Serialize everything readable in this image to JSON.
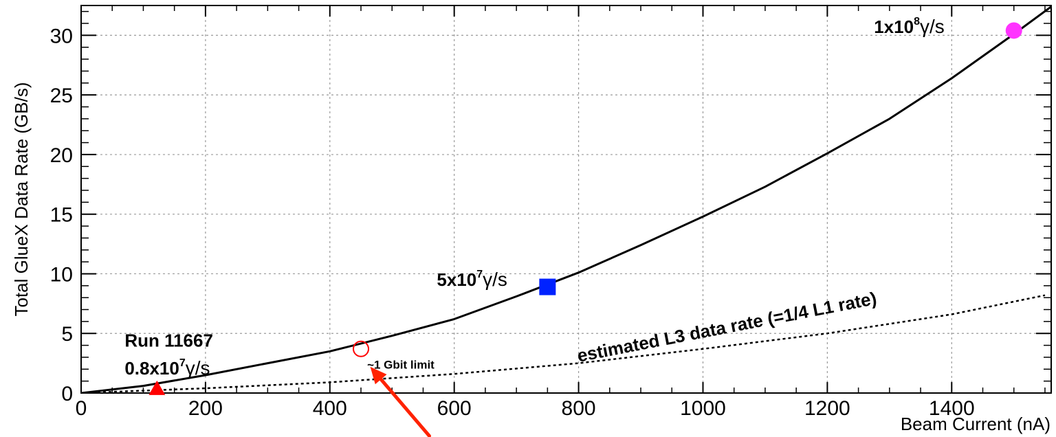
{
  "chart_data": {
    "type": "line",
    "title": "",
    "xlabel": "Beam Current (nA)",
    "ylabel": "Total GlueX Data Rate (GB/s)",
    "xlim": [
      0,
      1560
    ],
    "ylim": [
      0,
      32.5
    ],
    "x_ticks": [
      0,
      200,
      400,
      600,
      800,
      1000,
      1200,
      1400
    ],
    "x_tick_labels": [
      "0",
      "200",
      "400",
      "600",
      "800",
      "1000",
      "1200",
      "1400"
    ],
    "y_ticks": [
      0,
      5,
      10,
      15,
      20,
      25,
      30
    ],
    "y_tick_labels": [
      "0",
      "5",
      "10",
      "15",
      "20",
      "25",
      "30"
    ],
    "grid": true,
    "series": [
      {
        "name": "",
        "style": "solid",
        "color": "#000000",
        "x": [
          0,
          100,
          200,
          300,
          400,
          500,
          600,
          700,
          800,
          900,
          1000,
          1100,
          1200,
          1300,
          1400,
          1500,
          1560
        ],
        "y": [
          0,
          0.6,
          1.5,
          2.5,
          3.5,
          4.8,
          6.2,
          8.1,
          10.1,
          12.4,
          14.8,
          17.3,
          20.1,
          23.0,
          26.4,
          30.1,
          32.4
        ]
      },
      {
        "name": "",
        "style": "dotted",
        "color": "#000000",
        "x": [
          0,
          200,
          400,
          600,
          800,
          1000,
          1200,
          1400,
          1550
        ],
        "y": [
          0,
          0.4,
          0.9,
          1.6,
          2.5,
          3.7,
          5.0,
          6.6,
          8.2
        ]
      }
    ],
    "markers": [
      {
        "shape": "triangle",
        "color": "#ff0000",
        "fill": true,
        "x": 122,
        "y": 0.35
      },
      {
        "shape": "circle",
        "color": "#ff0000",
        "fill": false,
        "x": 450,
        "y": 3.7
      },
      {
        "shape": "square",
        "color": "#0022ff",
        "fill": true,
        "x": 750,
        "y": 8.9
      },
      {
        "shape": "circle",
        "color": "#ff33ff",
        "fill": true,
        "x": 1500,
        "y": 30.4
      }
    ],
    "annotations": [
      {
        "name": "run-label",
        "text": "Run 11667",
        "x": 70,
        "y": 3.9,
        "size": 26
      },
      {
        "name": "run-flux",
        "base": "0.8x10",
        "exp": "7",
        "unit": "γ/s",
        "x": 70,
        "y": 1.55,
        "size": 26
      },
      {
        "name": "flux-5e7",
        "base": "5x10",
        "exp": "7",
        "unit": "γ/s",
        "x": 572,
        "y": 9.0,
        "size": 26
      },
      {
        "name": "flux-1e8",
        "base": "1x10",
        "exp": "8",
        "unit": "γ/s",
        "x": 1275,
        "y": 30.2,
        "size": 26
      },
      {
        "name": "gbit-limit",
        "text": "~1 Gbit limit",
        "x": 460,
        "y": 2.05,
        "size": 17
      },
      {
        "name": "l3-rate",
        "text": "estimated L3 data rate (=1/4 L1 rate)",
        "x": 800,
        "y": 2.6,
        "size": 26,
        "angle": -11
      }
    ],
    "arrow": {
      "color": "#ff2200",
      "from": [
        560,
        -3.6
      ],
      "to": [
        465,
        2.2
      ]
    }
  }
}
